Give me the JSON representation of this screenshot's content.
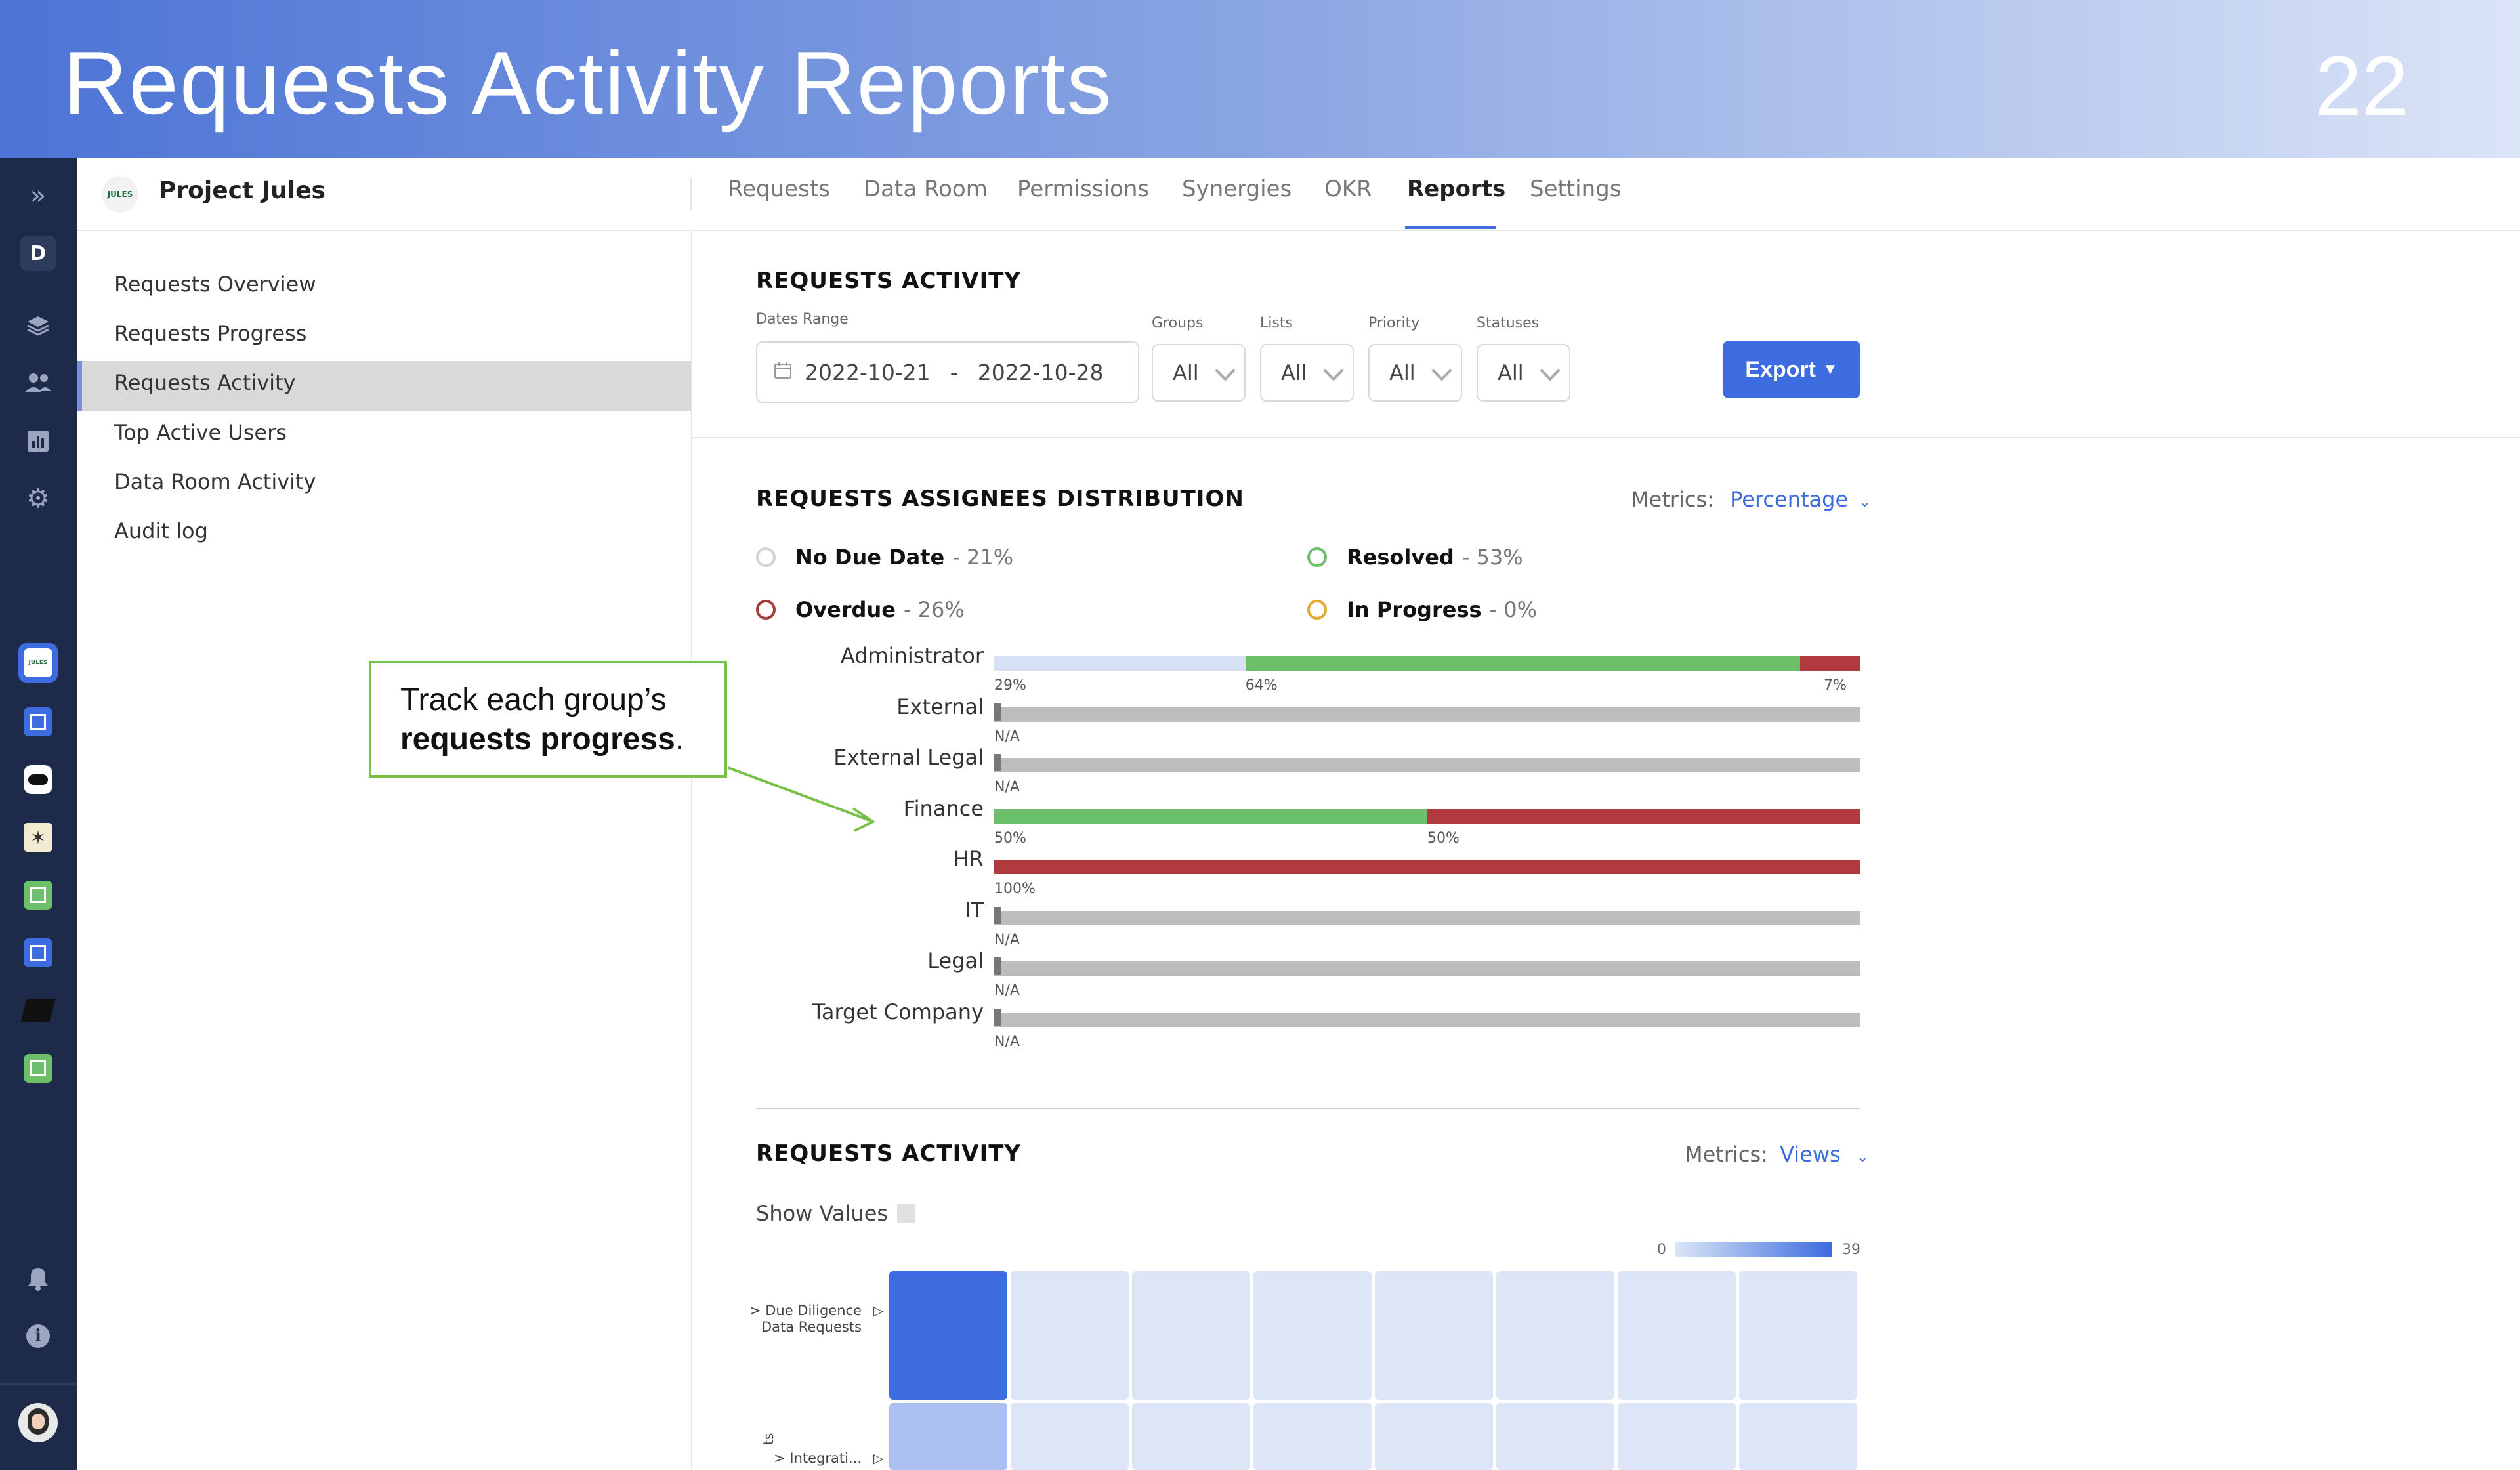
{
  "banner": {
    "title": "Requests Activity Reports",
    "page_number": "22"
  },
  "rail": {
    "workspace_letter": "D"
  },
  "project": {
    "logo_text": "JULES",
    "name": "Project Jules"
  },
  "tabs": [
    {
      "label": "Requests"
    },
    {
      "label": "Data Room"
    },
    {
      "label": "Permissions"
    },
    {
      "label": "Synergies"
    },
    {
      "label": "OKR"
    },
    {
      "label": "Reports",
      "active": true
    },
    {
      "label": "Settings"
    }
  ],
  "sidebar": {
    "items": [
      {
        "label": "Requests Overview"
      },
      {
        "label": "Requests Progress"
      },
      {
        "label": "Requests Activity",
        "active": true
      },
      {
        "label": "Top Active Users"
      },
      {
        "label": "Data Room Activity"
      },
      {
        "label": "Audit log"
      }
    ]
  },
  "filters": {
    "section_title": "REQUESTS ACTIVITY",
    "dates_label": "Dates Range",
    "date_from": "2022-10-21",
    "date_sep": "-",
    "date_to": "2022-10-28",
    "groups_label": "Groups",
    "groups_value": "All",
    "lists_label": "Lists",
    "lists_value": "All",
    "priority_label": "Priority",
    "priority_value": "All",
    "statuses_label": "Statuses",
    "statuses_value": "All",
    "export_label": "Export"
  },
  "distribution": {
    "title": "REQUESTS ASSIGNEES DISTRIBUTION",
    "metrics_label": "Metrics:",
    "metrics_value": "Percentage",
    "legend": [
      {
        "name": "No Due Date",
        "pct": "- 21%",
        "color": "#d4d4d4"
      },
      {
        "name": "Resolved",
        "pct": "- 53%",
        "color": "#6cc06a"
      },
      {
        "name": "Overdue",
        "pct": "- 26%",
        "color": "#a83a3a"
      },
      {
        "name": "In Progress",
        "pct": "- 0%",
        "color": "#e3a931"
      }
    ],
    "colors": {
      "no_due_date": "#d6e1f5",
      "resolved": "#6cc06a",
      "overdue": "#b03a3d",
      "na": "#bdbdbd"
    }
  },
  "chart_data": {
    "type": "bar",
    "orientation": "horizontal",
    "stacked": true,
    "categories": [
      "Administrator",
      "External",
      "External Legal",
      "Finance",
      "HR",
      "IT",
      "Legal",
      "Target Company"
    ],
    "series": [
      {
        "name": "No Due Date",
        "values": [
          29,
          null,
          null,
          0,
          0,
          null,
          null,
          null
        ]
      },
      {
        "name": "Resolved",
        "values": [
          64,
          null,
          null,
          50,
          0,
          null,
          null,
          null
        ]
      },
      {
        "name": "Overdue",
        "values": [
          7,
          null,
          null,
          50,
          100,
          null,
          null,
          null
        ]
      }
    ],
    "data_labels": [
      [
        "29%",
        "64%",
        "7%"
      ],
      [
        "N/A"
      ],
      [
        "N/A"
      ],
      [
        "50%",
        "50%"
      ],
      [
        "100%"
      ],
      [
        "N/A"
      ],
      [
        "N/A"
      ],
      [
        "N/A"
      ]
    ],
    "xlim": [
      0,
      100
    ]
  },
  "activity": {
    "title": "REQUESTS ACTIVITY",
    "metrics_label": "Metrics:",
    "metrics_value": "Views",
    "show_values_label": "Show Values",
    "scale_min": "0",
    "scale_max": "39",
    "rows": [
      {
        "label": "> Due Diligence Data Requests",
        "values": [
          39,
          0,
          0,
          0,
          0,
          0,
          0,
          0
        ]
      },
      {
        "label": "> Integrati...",
        "values": [
          12,
          0,
          0,
          0,
          0,
          0,
          0,
          0
        ]
      }
    ],
    "axis_fragment": "ts"
  },
  "callout": {
    "text_plain": "Track each group’s",
    "text_bold": "requests progress",
    "text_end": "."
  }
}
